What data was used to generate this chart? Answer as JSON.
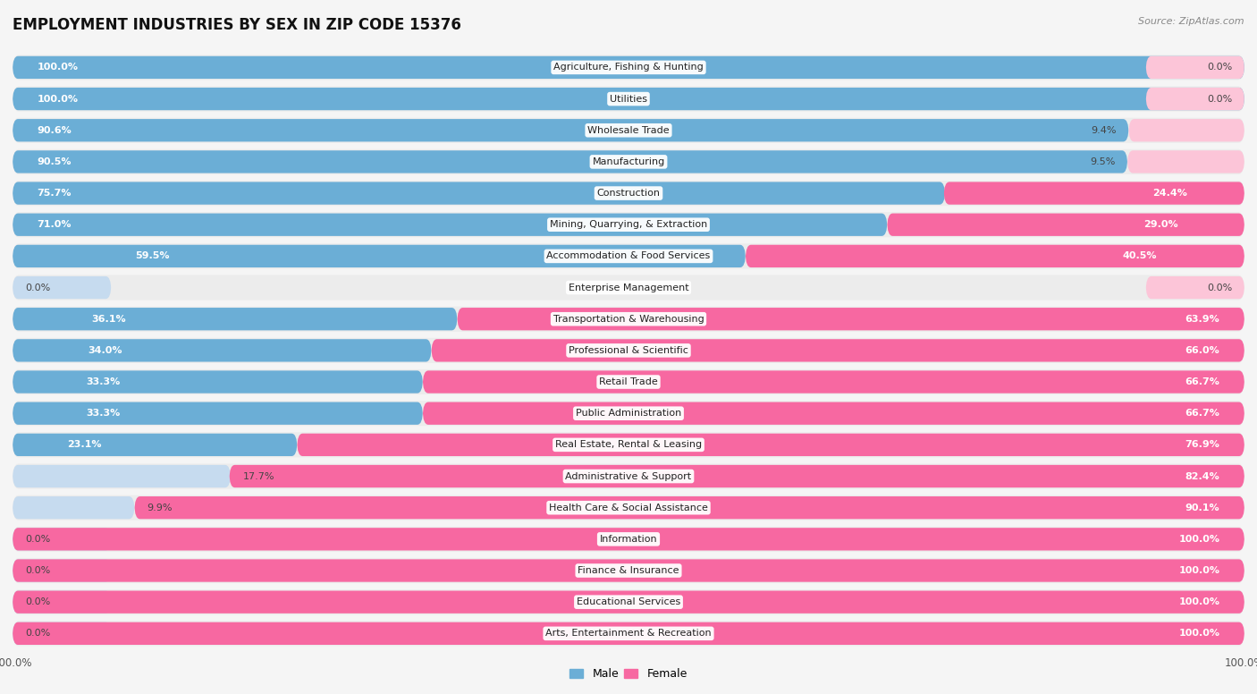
{
  "title": "EMPLOYMENT INDUSTRIES BY SEX IN ZIP CODE 15376",
  "source": "Source: ZipAtlas.com",
  "categories": [
    "Agriculture, Fishing & Hunting",
    "Utilities",
    "Wholesale Trade",
    "Manufacturing",
    "Construction",
    "Mining, Quarrying, & Extraction",
    "Accommodation & Food Services",
    "Enterprise Management",
    "Transportation & Warehousing",
    "Professional & Scientific",
    "Retail Trade",
    "Public Administration",
    "Real Estate, Rental & Leasing",
    "Administrative & Support",
    "Health Care & Social Assistance",
    "Information",
    "Finance & Insurance",
    "Educational Services",
    "Arts, Entertainment & Recreation"
  ],
  "male_pct": [
    100.0,
    100.0,
    90.6,
    90.5,
    75.7,
    71.0,
    59.5,
    0.0,
    36.1,
    34.0,
    33.3,
    33.3,
    23.1,
    17.7,
    9.9,
    0.0,
    0.0,
    0.0,
    0.0
  ],
  "female_pct": [
    0.0,
    0.0,
    9.4,
    9.5,
    24.4,
    29.0,
    40.5,
    0.0,
    63.9,
    66.0,
    66.7,
    66.7,
    76.9,
    82.4,
    90.1,
    100.0,
    100.0,
    100.0,
    100.0
  ],
  "male_color": "#6baed6",
  "male_color_light": "#c6dbef",
  "female_color": "#f768a1",
  "female_color_light": "#fcc5d8",
  "row_bg_color": "#ececec",
  "background_color": "#f5f5f5",
  "title_fontsize": 12,
  "label_fontsize": 8,
  "bar_height": 0.72,
  "figsize": [
    14.06,
    7.76
  ],
  "dpi": 100
}
